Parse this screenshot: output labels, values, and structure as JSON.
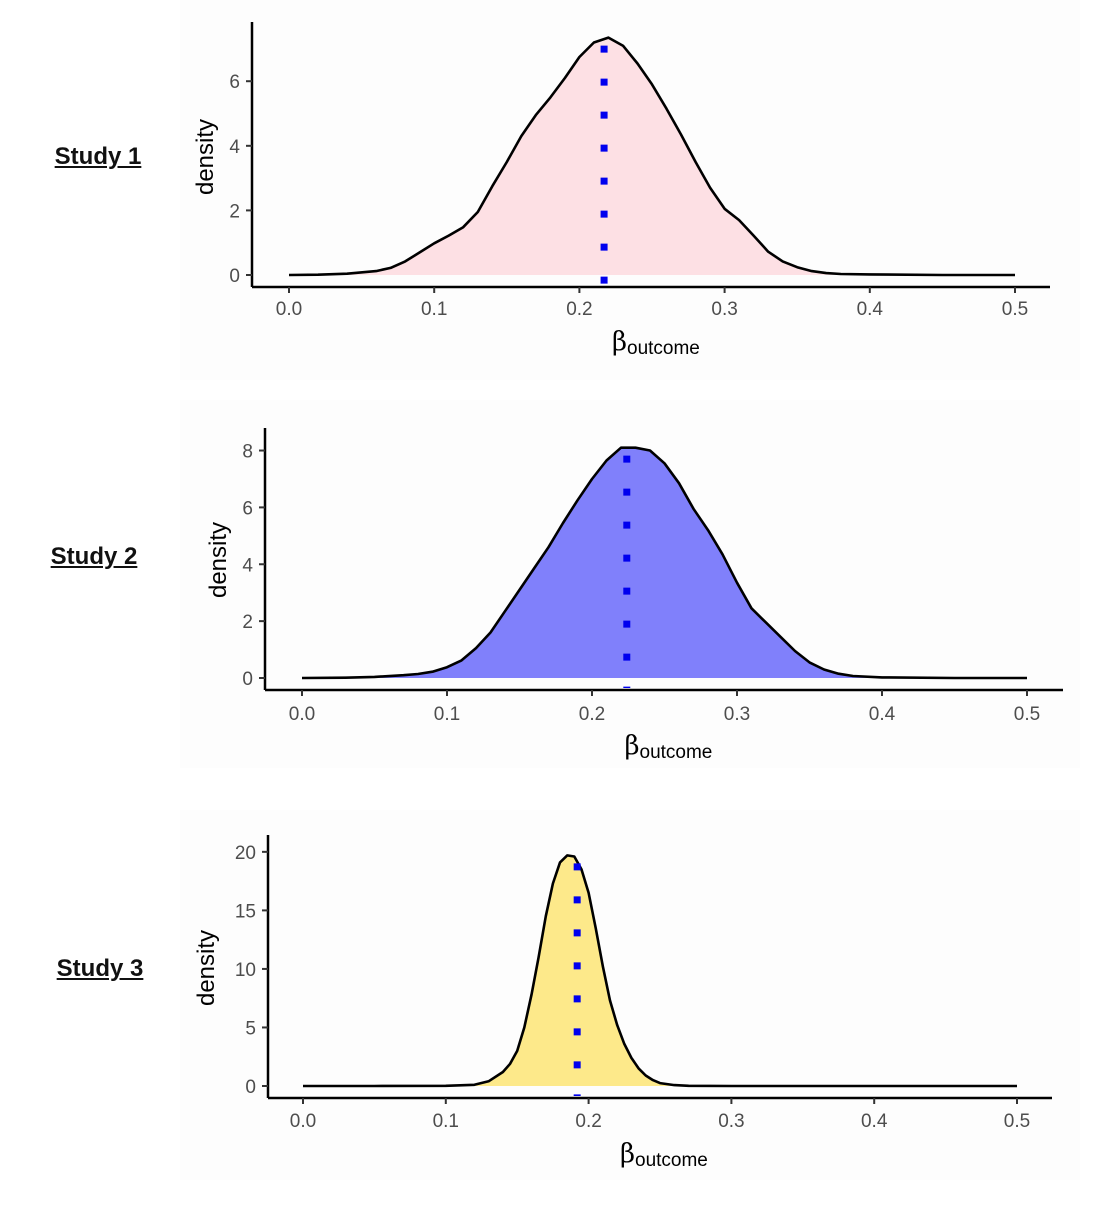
{
  "panels": [
    {
      "label": "Study 1"
    },
    {
      "label": "Study 2"
    },
    {
      "label": "Study 3"
    }
  ],
  "chart_data": [
    {
      "type": "area",
      "title": "",
      "xlabel_main": "β",
      "xlabel_sub": "outcome",
      "ylabel": "density",
      "xlim": [
        0.0,
        0.5
      ],
      "ylim": [
        0,
        7.4
      ],
      "xticks": [
        0.0,
        0.1,
        0.2,
        0.3,
        0.4,
        0.5
      ],
      "xtick_labels": [
        "0.0",
        "0.1",
        "0.2",
        "0.3",
        "0.4",
        "0.5"
      ],
      "yticks": [
        0,
        2,
        4,
        6
      ],
      "ytick_labels": [
        "0",
        "2",
        "4",
        "6"
      ],
      "fill_color": "#fde0e4",
      "line_color": "#000000",
      "vline_color": "#0000ee",
      "vline_x": 0.217,
      "series": [
        {
          "x": [
            0.0,
            0.02,
            0.04,
            0.06,
            0.07,
            0.08,
            0.09,
            0.1,
            0.11,
            0.12,
            0.13,
            0.14,
            0.15,
            0.16,
            0.17,
            0.18,
            0.19,
            0.2,
            0.21,
            0.22,
            0.23,
            0.24,
            0.25,
            0.26,
            0.27,
            0.28,
            0.29,
            0.3,
            0.31,
            0.32,
            0.33,
            0.34,
            0.35,
            0.36,
            0.37,
            0.38,
            0.4,
            0.45,
            0.5
          ],
          "y": [
            0.0,
            0.01,
            0.04,
            0.12,
            0.22,
            0.42,
            0.7,
            0.98,
            1.22,
            1.48,
            1.95,
            2.75,
            3.5,
            4.3,
            4.95,
            5.5,
            6.1,
            6.75,
            7.2,
            7.35,
            7.1,
            6.55,
            5.9,
            5.15,
            4.35,
            3.5,
            2.7,
            2.05,
            1.7,
            1.22,
            0.72,
            0.42,
            0.24,
            0.12,
            0.06,
            0.03,
            0.02,
            0.0,
            0.0
          ]
        }
      ]
    },
    {
      "type": "area",
      "title": "",
      "xlabel_main": "β",
      "xlabel_sub": "outcome",
      "ylabel": "density",
      "xlim": [
        0.0,
        0.5
      ],
      "ylim": [
        0,
        8.3
      ],
      "xticks": [
        0.0,
        0.1,
        0.2,
        0.3,
        0.4,
        0.5
      ],
      "xtick_labels": [
        "0.0",
        "0.1",
        "0.2",
        "0.3",
        "0.4",
        "0.5"
      ],
      "yticks": [
        0,
        2,
        4,
        6,
        8
      ],
      "ytick_labels": [
        "0",
        "2",
        "4",
        "6",
        "8"
      ],
      "fill_color": "#8080fb",
      "line_color": "#000000",
      "vline_color": "#0000ee",
      "vline_x": 0.224,
      "series": [
        {
          "x": [
            0.0,
            0.03,
            0.05,
            0.07,
            0.08,
            0.09,
            0.1,
            0.11,
            0.12,
            0.13,
            0.14,
            0.15,
            0.16,
            0.17,
            0.18,
            0.19,
            0.2,
            0.21,
            0.22,
            0.23,
            0.24,
            0.25,
            0.26,
            0.27,
            0.28,
            0.29,
            0.3,
            0.31,
            0.32,
            0.33,
            0.34,
            0.35,
            0.36,
            0.37,
            0.38,
            0.4,
            0.45,
            0.5
          ],
          "y": [
            0.0,
            0.01,
            0.04,
            0.1,
            0.14,
            0.22,
            0.38,
            0.62,
            1.05,
            1.6,
            2.35,
            3.1,
            3.85,
            4.6,
            5.45,
            6.25,
            7.0,
            7.65,
            8.1,
            8.1,
            8.0,
            7.55,
            6.85,
            5.95,
            5.2,
            4.35,
            3.35,
            2.45,
            1.95,
            1.45,
            0.95,
            0.55,
            0.3,
            0.15,
            0.07,
            0.02,
            0.0,
            0.0
          ]
        }
      ]
    },
    {
      "type": "area",
      "title": "",
      "xlabel_main": "β",
      "xlabel_sub": "outcome",
      "ylabel": "density",
      "xlim": [
        0.0,
        0.5
      ],
      "ylim": [
        0,
        20.5
      ],
      "xticks": [
        0.0,
        0.1,
        0.2,
        0.3,
        0.4,
        0.5
      ],
      "xtick_labels": [
        "0.0",
        "0.1",
        "0.2",
        "0.3",
        "0.4",
        "0.5"
      ],
      "yticks": [
        0,
        5,
        10,
        15,
        20
      ],
      "ytick_labels": [
        "0",
        "5",
        "10",
        "15",
        "20"
      ],
      "fill_color": "#fde98a",
      "line_color": "#000000",
      "vline_color": "#0000ee",
      "vline_x": 0.192,
      "series": [
        {
          "x": [
            0.0,
            0.05,
            0.1,
            0.12,
            0.13,
            0.14,
            0.145,
            0.15,
            0.155,
            0.16,
            0.165,
            0.17,
            0.175,
            0.18,
            0.185,
            0.19,
            0.195,
            0.2,
            0.205,
            0.21,
            0.215,
            0.22,
            0.225,
            0.23,
            0.235,
            0.24,
            0.245,
            0.25,
            0.26,
            0.27,
            0.3,
            0.4,
            0.5
          ],
          "y": [
            0.0,
            0.0,
            0.02,
            0.1,
            0.4,
            1.2,
            1.9,
            3.0,
            5.0,
            7.8,
            11.0,
            14.5,
            17.3,
            19.1,
            19.7,
            19.6,
            18.5,
            16.5,
            13.5,
            10.2,
            7.3,
            5.2,
            3.6,
            2.4,
            1.5,
            0.9,
            0.5,
            0.25,
            0.08,
            0.02,
            0.0,
            0.0,
            0.0
          ]
        }
      ]
    }
  ]
}
